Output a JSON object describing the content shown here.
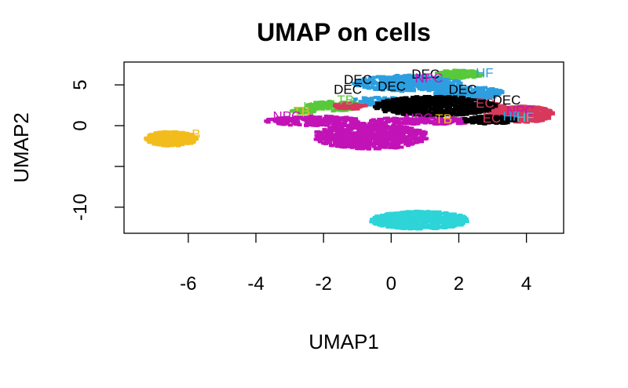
{
  "chart_data": {
    "type": "scatter",
    "title": "UMAP on cells",
    "xlabel": "UMAP1",
    "ylabel": "UMAP2",
    "xlim": [
      -7.9,
      5.1
    ],
    "ylim": [
      -13.2,
      7.8
    ],
    "xticks": [
      -6,
      -4,
      -2,
      0,
      2,
      4
    ],
    "yticks": [
      -10,
      -5,
      0,
      5
    ],
    "xtick_labels": [
      "-6",
      "-4",
      "-2",
      "0",
      "2",
      "4"
    ],
    "ytick_labels": [
      "-10",
      "",
      "0",
      "5"
    ],
    "grid": false,
    "point_text_labels": [
      {
        "text": "DEC",
        "x": -1.4,
        "y": 5.1,
        "color": "#000000"
      },
      {
        "text": "DEC",
        "x": -1.7,
        "y": 3.9,
        "color": "#000000"
      },
      {
        "text": "DEC",
        "x": -0.4,
        "y": 4.3,
        "color": "#000000"
      },
      {
        "text": "DEC",
        "x": 0.6,
        "y": 5.8,
        "color": "#000000"
      },
      {
        "text": "DEC",
        "x": 1.7,
        "y": 3.9,
        "color": "#000000"
      },
      {
        "text": "DEC",
        "x": 3.0,
        "y": 2.6,
        "color": "#000000"
      },
      {
        "text": "NPC",
        "x": 0.7,
        "y": 5.3,
        "color": "#c213b7"
      },
      {
        "text": "HF",
        "x": 2.5,
        "y": 5.9,
        "color": "#2d9fe0"
      },
      {
        "text": "TB",
        "x": -1.6,
        "y": 2.6,
        "color": "#58c93a"
      },
      {
        "text": "TB",
        "x": -2.9,
        "y": 1.2,
        "color": "#f2bc1c"
      },
      {
        "text": "TB",
        "x": 1.3,
        "y": 0.3,
        "color": "#f2bc1c"
      },
      {
        "text": "NPC",
        "x": -3.5,
        "y": 0.6,
        "color": "#c213b7"
      },
      {
        "text": "NPC",
        "x": 0.4,
        "y": 0.4,
        "color": "#c213b7"
      },
      {
        "text": "NPC",
        "x": 3.4,
        "y": 1.3,
        "color": "#c213b7"
      },
      {
        "text": "EC",
        "x": 2.5,
        "y": 2.2,
        "color": "#d7385c"
      },
      {
        "text": "EC",
        "x": 2.7,
        "y": 0.4,
        "color": "#d7385c"
      },
      {
        "text": "HF",
        "x": 3.7,
        "y": 0.5,
        "color": "#2dd4d8"
      },
      {
        "text": "HF",
        "x": 3.3,
        "y": 0.6,
        "color": "#2d9fe0"
      },
      {
        "text": "HF",
        "x": -2.6,
        "y": 1.8,
        "color": "#58c93a"
      },
      {
        "text": "B",
        "x": -5.9,
        "y": -1.6,
        "color": "#f2bc1c"
      }
    ],
    "series": [
      {
        "color": "#f2bc1c",
        "clusters": [
          {
            "cx": -6.5,
            "cy": -1.6,
            "rx": 0.75,
            "ry": 0.9,
            "n": 320
          }
        ]
      },
      {
        "color": "#c213b7",
        "clusters": [
          {
            "cx": -0.6,
            "cy": -1.3,
            "rx": 1.7,
            "ry": 1.6,
            "n": 650
          },
          {
            "cx": -2.3,
            "cy": 0.6,
            "rx": 1.4,
            "ry": 0.6,
            "n": 180
          },
          {
            "cx": 1.0,
            "cy": 0.6,
            "rx": 1.6,
            "ry": 0.45,
            "n": 180
          },
          {
            "cx": 0.8,
            "cy": 5.2,
            "rx": 0.5,
            "ry": 0.4,
            "n": 50
          }
        ]
      },
      {
        "color": "#2dd4d8",
        "clusters": [
          {
            "cx": 0.85,
            "cy": -11.6,
            "rx": 1.45,
            "ry": 1.1,
            "n": 650
          }
        ]
      },
      {
        "color": "#2d9fe0",
        "clusters": [
          {
            "cx": 0.5,
            "cy": 5.2,
            "rx": 1.6,
            "ry": 1.0,
            "n": 380
          },
          {
            "cx": 2.3,
            "cy": 4.0,
            "rx": 1.0,
            "ry": 0.8,
            "n": 220
          },
          {
            "cx": -0.3,
            "cy": 3.0,
            "rx": 0.9,
            "ry": 0.5,
            "n": 80
          }
        ]
      },
      {
        "color": "#58c93a",
        "clusters": [
          {
            "cx": -1.7,
            "cy": 2.4,
            "rx": 0.8,
            "ry": 0.6,
            "n": 120
          },
          {
            "cx": 2.0,
            "cy": 6.3,
            "rx": 0.7,
            "ry": 0.5,
            "n": 90
          },
          {
            "cx": -2.6,
            "cy": 1.8,
            "rx": 0.35,
            "ry": 0.35,
            "n": 40
          }
        ]
      },
      {
        "color": "#d7385c",
        "clusters": [
          {
            "cx": 3.9,
            "cy": 1.4,
            "rx": 0.9,
            "ry": 1.0,
            "n": 300
          },
          {
            "cx": 2.8,
            "cy": 2.2,
            "rx": 0.6,
            "ry": 0.6,
            "n": 120
          },
          {
            "cx": -1.2,
            "cy": 2.4,
            "rx": 0.5,
            "ry": 0.4,
            "n": 50
          }
        ]
      },
      {
        "color": "#000000",
        "clusters": [
          {
            "cx": 1.3,
            "cy": 2.4,
            "rx": 1.8,
            "ry": 1.2,
            "n": 650
          },
          {
            "cx": 2.9,
            "cy": 0.7,
            "rx": 0.8,
            "ry": 0.5,
            "n": 100
          }
        ]
      }
    ]
  }
}
